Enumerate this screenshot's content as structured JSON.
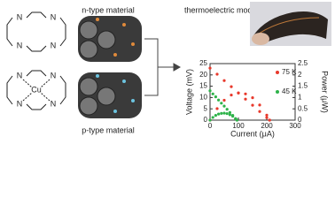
{
  "labels": {
    "n_type": "n-type material",
    "p_type": "p-type material",
    "module": "thermoelectric module"
  },
  "molecule_1": {
    "atoms": [
      "N",
      "N",
      "N",
      "N"
    ]
  },
  "molecule_2": {
    "atoms": [
      "N",
      "N",
      "N",
      "N",
      "Cu"
    ]
  },
  "chart_data": {
    "type": "scatter",
    "x_label": "Current (μA)",
    "y_label": "Voltage (mV)",
    "y2_label": "Power (μW)",
    "xlim": [
      0,
      300
    ],
    "xticks": [
      0,
      100,
      200,
      300
    ],
    "ylim": [
      0,
      25
    ],
    "yticks": [
      0,
      5,
      10,
      15,
      20,
      25
    ],
    "y2lim": [
      0,
      2.5
    ],
    "y2ticks": [
      0,
      0.5,
      1,
      1.5,
      2,
      2.5
    ],
    "series": [
      {
        "name": "75 K",
        "color": "#e8392c",
        "x": [
          0,
          25,
          50,
          75,
          100,
          125,
          150,
          175,
          200,
          210
        ],
        "values": [
          23,
          20.3,
          17.5,
          14.8,
          12,
          9.3,
          6.6,
          3.8,
          1.1,
          0
        ]
      },
      {
        "color": "#e8392c",
        "axis": "y2",
        "x": [
          0,
          25,
          50,
          75,
          100,
          125,
          150,
          175,
          200,
          210
        ],
        "values": [
          0,
          0.51,
          0.88,
          1.11,
          1.2,
          1.16,
          0.99,
          0.67,
          0.22,
          0
        ]
      },
      {
        "name": "45 K",
        "color": "#2eb34a",
        "x": [
          0,
          10,
          20,
          30,
          40,
          50,
          60,
          70,
          80,
          90,
          95
        ],
        "values": [
          13,
          11.6,
          10.3,
          8.9,
          7.5,
          6.2,
          4.8,
          3.4,
          2.1,
          0.7,
          0
        ]
      },
      {
        "color": "#2eb34a",
        "axis": "y2",
        "x": [
          0,
          10,
          20,
          30,
          40,
          50,
          60,
          70,
          80,
          90,
          95
        ],
        "values": [
          0,
          0.12,
          0.21,
          0.27,
          0.3,
          0.31,
          0.29,
          0.24,
          0.17,
          0.06,
          0
        ]
      }
    ]
  }
}
